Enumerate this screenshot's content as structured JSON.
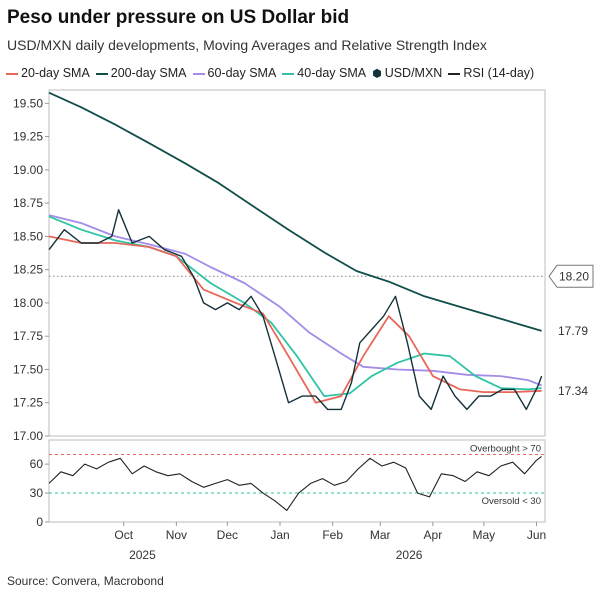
{
  "title": "Peso under pressure on US Dollar bid",
  "subtitle": "USD/MXN daily developments, Moving Averages and Relative Strength Index",
  "source": "Source: Convera, Macrobond",
  "colors": {
    "sma20": "#e8675a",
    "sma200": "#114e4a",
    "sma60": "#a48ce8",
    "sma40": "#2ec4a4",
    "price": "#14323a",
    "rsi": "#222222",
    "refline": "#888888",
    "overbought": "#e8675a",
    "oversold": "#2ec4a4"
  },
  "legend": [
    {
      "label": "20-day SMA",
      "color": "#e8675a",
      "kind": "line"
    },
    {
      "label": "200-day SMA",
      "color": "#114e4a",
      "kind": "line"
    },
    {
      "label": "60-day SMA",
      "color": "#a48ce8",
      "kind": "line"
    },
    {
      "label": "40-day SMA",
      "color": "#2ec4a4",
      "kind": "line"
    },
    {
      "label": "USD/MXN",
      "color": "#14323a",
      "kind": "candle"
    },
    {
      "label": "RSI (14-day)",
      "color": "#222222",
      "kind": "line"
    }
  ],
  "chart_data": [
    {
      "type": "line",
      "title": "Peso under pressure on US Dollar bid",
      "ylim": [
        17.0,
        19.6
      ],
      "yticks": [
        "19.50",
        "19.25",
        "19.00",
        "18.75",
        "18.50",
        "18.25",
        "18.00",
        "17.75",
        "17.50",
        "17.25",
        "17.00"
      ],
      "xlim": [
        "2025-09-01",
        "2026-06-20"
      ],
      "xticks": [
        {
          "label": "Oct",
          "date": "2025-10-15"
        },
        {
          "label": "Nov",
          "date": "2025-11-15"
        },
        {
          "label": "Dec",
          "date": "2025-12-15"
        },
        {
          "label": "Jan",
          "date": "2026-01-15"
        },
        {
          "label": "Feb",
          "date": "2026-02-15"
        },
        {
          "label": "Mar",
          "date": "2026-03-15"
        },
        {
          "label": "Apr",
          "date": "2026-04-15"
        },
        {
          "label": "May",
          "date": "2026-05-15"
        },
        {
          "label": "Jun",
          "date": "2026-06-15"
        }
      ],
      "year_labels": [
        {
          "label": "2025",
          "date": "2025-10-26"
        },
        {
          "label": "2026",
          "date": "2026-04-01"
        }
      ],
      "reference_line": {
        "value": 18.2,
        "label": "18.20"
      },
      "end_labels": [
        {
          "label": "17.79",
          "value": 17.79,
          "color": "#e8675a"
        },
        {
          "label": "17.34",
          "value": 17.34,
          "color": "#999999"
        }
      ],
      "series": [
        {
          "name": "200-day SMA",
          "color": "#114e4a",
          "x": [
            "2025-09-01",
            "2025-09-20",
            "2025-10-10",
            "2025-10-30",
            "2025-11-20",
            "2025-12-10",
            "2025-12-31",
            "2026-01-20",
            "2026-02-10",
            "2026-03-01",
            "2026-03-20",
            "2026-04-10",
            "2026-05-01",
            "2026-05-20",
            "2026-06-10",
            "2026-06-18"
          ],
          "y": [
            19.58,
            19.47,
            19.34,
            19.2,
            19.05,
            18.9,
            18.72,
            18.55,
            18.38,
            18.24,
            18.16,
            18.05,
            17.97,
            17.9,
            17.82,
            17.79
          ]
        },
        {
          "name": "60-day SMA",
          "color": "#a48ce8",
          "x": [
            "2025-09-01",
            "2025-09-20",
            "2025-10-10",
            "2025-10-30",
            "2025-11-20",
            "2025-12-05",
            "2025-12-25",
            "2026-01-15",
            "2026-02-01",
            "2026-02-20",
            "2026-03-05",
            "2026-03-25",
            "2026-04-15",
            "2026-05-05",
            "2026-05-25",
            "2026-06-10",
            "2026-06-18"
          ],
          "y": [
            18.66,
            18.6,
            18.5,
            18.44,
            18.37,
            18.27,
            18.15,
            17.97,
            17.78,
            17.62,
            17.52,
            17.5,
            17.49,
            17.46,
            17.45,
            17.42,
            17.38
          ]
        },
        {
          "name": "40-day SMA",
          "color": "#2ec4a4",
          "x": [
            "2025-09-01",
            "2025-09-20",
            "2025-10-10",
            "2025-10-30",
            "2025-11-15",
            "2025-12-05",
            "2025-12-25",
            "2026-01-10",
            "2026-01-25",
            "2026-02-10",
            "2026-02-25",
            "2026-03-10",
            "2026-03-25",
            "2026-04-10",
            "2026-04-25",
            "2026-05-10",
            "2026-05-25",
            "2026-06-10",
            "2026-06-18"
          ],
          "y": [
            18.65,
            18.55,
            18.47,
            18.42,
            18.35,
            18.15,
            18.0,
            17.85,
            17.6,
            17.3,
            17.32,
            17.45,
            17.55,
            17.62,
            17.6,
            17.45,
            17.36,
            17.35,
            17.36
          ]
        },
        {
          "name": "20-day SMA",
          "color": "#e8675a",
          "x": [
            "2025-09-01",
            "2025-09-20",
            "2025-10-10",
            "2025-10-30",
            "2025-11-15",
            "2025-12-01",
            "2025-12-20",
            "2026-01-05",
            "2026-01-20",
            "2026-02-05",
            "2026-02-20",
            "2026-03-05",
            "2026-03-20",
            "2026-04-01",
            "2026-04-15",
            "2026-05-01",
            "2026-05-15",
            "2026-06-01",
            "2026-06-18"
          ],
          "y": [
            18.5,
            18.45,
            18.45,
            18.42,
            18.35,
            18.1,
            18.0,
            17.92,
            17.6,
            17.25,
            17.3,
            17.6,
            17.9,
            17.75,
            17.45,
            17.35,
            17.33,
            17.33,
            17.34
          ]
        },
        {
          "name": "USD/MXN",
          "color": "#14323a",
          "x": [
            "2025-09-01",
            "2025-09-10",
            "2025-09-20",
            "2025-09-30",
            "2025-10-08",
            "2025-10-12",
            "2025-10-20",
            "2025-10-30",
            "2025-11-08",
            "2025-11-18",
            "2025-11-25",
            "2025-12-01",
            "2025-12-08",
            "2025-12-15",
            "2025-12-22",
            "2025-12-29",
            "2026-01-05",
            "2026-01-12",
            "2026-01-20",
            "2026-01-28",
            "2026-02-05",
            "2026-02-12",
            "2026-02-20",
            "2026-02-26",
            "2026-03-03",
            "2026-03-10",
            "2026-03-17",
            "2026-03-24",
            "2026-03-31",
            "2026-04-07",
            "2026-04-14",
            "2026-04-21",
            "2026-04-28",
            "2026-05-05",
            "2026-05-12",
            "2026-05-19",
            "2026-05-26",
            "2026-06-02",
            "2026-06-09",
            "2026-06-16",
            "2026-06-18"
          ],
          "y": [
            18.4,
            18.55,
            18.45,
            18.45,
            18.5,
            18.7,
            18.45,
            18.5,
            18.4,
            18.35,
            18.2,
            18.0,
            17.95,
            18.0,
            17.95,
            18.05,
            17.9,
            17.6,
            17.25,
            17.3,
            17.3,
            17.2,
            17.2,
            17.4,
            17.7,
            17.8,
            17.9,
            18.05,
            17.7,
            17.3,
            17.2,
            17.45,
            17.3,
            17.2,
            17.3,
            17.3,
            17.35,
            17.35,
            17.2,
            17.38,
            17.45
          ]
        }
      ]
    },
    {
      "type": "line",
      "ylim": [
        0,
        85
      ],
      "yticks": [
        "60",
        "30",
        "0"
      ],
      "thresholds": [
        {
          "value": 70,
          "label": "Overbought > 70",
          "color": "#e8675a"
        },
        {
          "value": 30,
          "label": "Oversold < 30",
          "color": "#2ec4a4"
        }
      ],
      "series": [
        {
          "name": "RSI (14-day)",
          "color": "#222222",
          "x": [
            "2025-09-01",
            "2025-09-08",
            "2025-09-15",
            "2025-09-22",
            "2025-09-29",
            "2025-10-06",
            "2025-10-13",
            "2025-10-20",
            "2025-10-27",
            "2025-11-03",
            "2025-11-10",
            "2025-11-17",
            "2025-11-24",
            "2025-12-01",
            "2025-12-08",
            "2025-12-15",
            "2025-12-22",
            "2025-12-29",
            "2026-01-05",
            "2026-01-12",
            "2026-01-19",
            "2026-01-26",
            "2026-02-02",
            "2026-02-09",
            "2026-02-16",
            "2026-02-23",
            "2026-03-02",
            "2026-03-09",
            "2026-03-16",
            "2026-03-23",
            "2026-03-30",
            "2026-04-06",
            "2026-04-13",
            "2026-04-20",
            "2026-04-27",
            "2026-05-04",
            "2026-05-11",
            "2026-05-18",
            "2026-05-25",
            "2026-06-01",
            "2026-06-08",
            "2026-06-15",
            "2026-06-18"
          ],
          "y": [
            40,
            52,
            48,
            60,
            55,
            62,
            66,
            50,
            58,
            52,
            48,
            50,
            42,
            36,
            40,
            44,
            38,
            40,
            30,
            22,
            12,
            30,
            40,
            45,
            38,
            42,
            55,
            66,
            58,
            62,
            56,
            30,
            26,
            50,
            48,
            42,
            52,
            48,
            58,
            62,
            50,
            64,
            68
          ]
        }
      ]
    }
  ]
}
